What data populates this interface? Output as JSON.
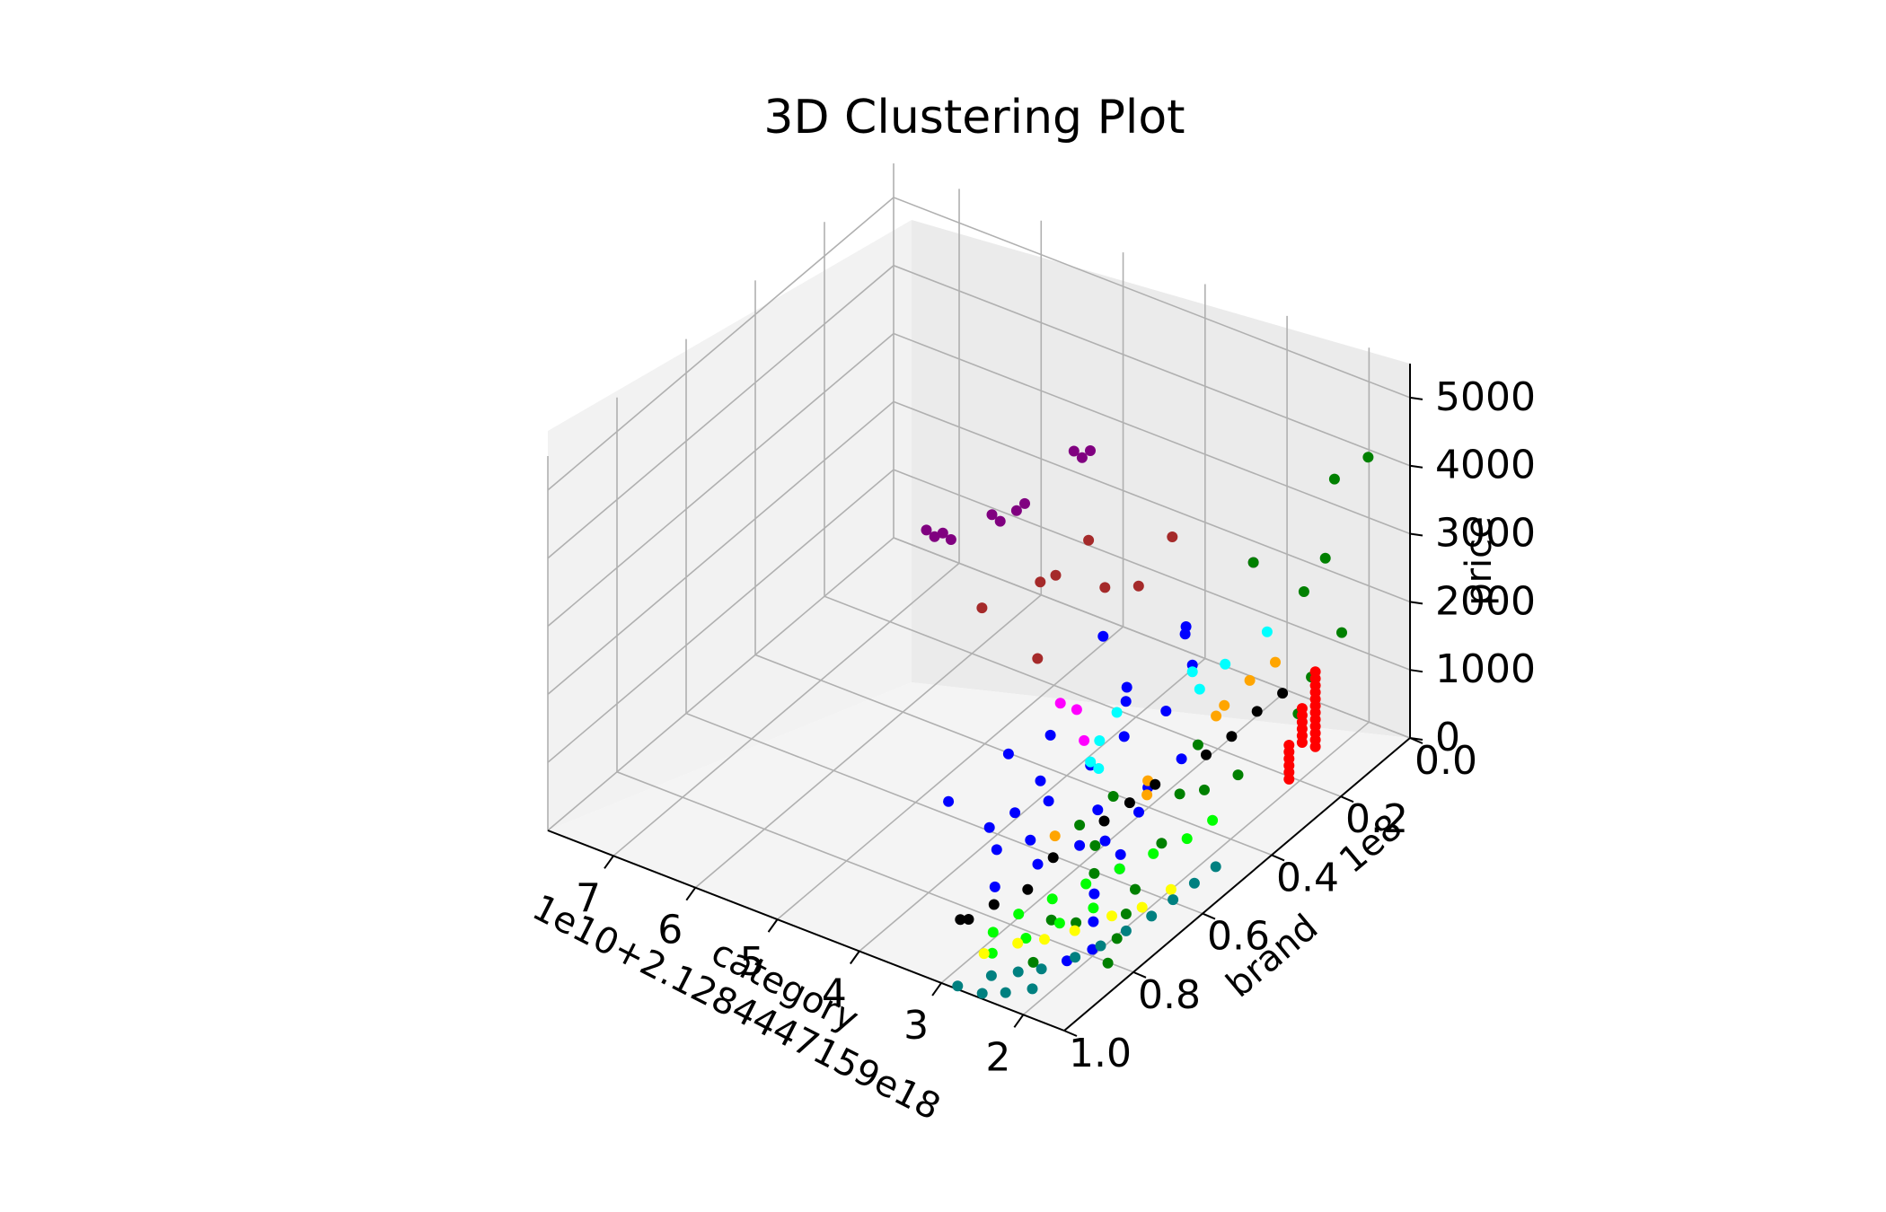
{
  "chart_data": {
    "type": "scatter3d",
    "title": "3D Clustering Plot",
    "xlabel": "category",
    "ylabel": "brand",
    "zlabel": "price",
    "x_offset_label": "1e10+2.1284447159e18",
    "y_scale_label": "1e8",
    "x_ticks": [
      "7",
      "6",
      "5",
      "4",
      "3",
      "2"
    ],
    "y_ticks": [
      "0.0",
      "0.2",
      "0.4",
      "0.6",
      "0.8",
      "1.0"
    ],
    "z_ticks": [
      "0",
      "1000",
      "2000",
      "3000",
      "4000",
      "5000"
    ],
    "xlim": [
      7.8,
      1.5
    ],
    "ylim": [
      0.0,
      1.0
    ],
    "zlim": [
      0,
      5500
    ],
    "grid": true,
    "series": [
      {
        "name": "purple",
        "color": "#800080",
        "points": [
          [
            7.4,
            0.0,
            300
          ],
          [
            7.3,
            0.0,
            250
          ],
          [
            7.2,
            0.0,
            350
          ],
          [
            7.1,
            0.0,
            300
          ],
          [
            6.6,
            0.0,
            900
          ],
          [
            6.5,
            0.0,
            850
          ],
          [
            6.3,
            0.0,
            1100
          ],
          [
            6.2,
            0.0,
            1250
          ],
          [
            5.6,
            0.0,
            2300
          ],
          [
            5.5,
            0.0,
            2250
          ],
          [
            5.4,
            0.0,
            2400
          ]
        ]
      },
      {
        "name": "brown",
        "color": "#a52a2a",
        "points": [
          [
            6.3,
            0.1,
            100
          ],
          [
            5.4,
            0.1,
            1000
          ],
          [
            5.0,
            0.1,
            1700
          ],
          [
            4.8,
            0.1,
            1100
          ],
          [
            4.6,
            0.05,
            1000
          ],
          [
            5.2,
            0.2,
            300
          ],
          [
            4.4,
            0.0,
            1600
          ],
          [
            5.8,
            0.05,
            500
          ]
        ]
      },
      {
        "name": "magenta",
        "color": "#ff00ff",
        "points": [
          [
            4.5,
            0.3,
            400
          ],
          [
            4.3,
            0.3,
            400
          ],
          [
            4.0,
            0.35,
            300
          ],
          [
            3.2,
            0.05,
            2000
          ]
        ]
      },
      {
        "name": "blue",
        "color": "#0000ff",
        "points": [
          [
            4.0,
            0.55,
            100
          ],
          [
            3.8,
            0.5,
            150
          ],
          [
            3.6,
            0.6,
            100
          ],
          [
            4.5,
            0.45,
            300
          ],
          [
            4.2,
            0.4,
            500
          ],
          [
            3.9,
            0.5,
            400
          ],
          [
            3.5,
            0.45,
            600
          ],
          [
            3.3,
            0.4,
            900
          ],
          [
            3.0,
            0.35,
            1200
          ],
          [
            3.4,
            0.2,
            1500
          ],
          [
            3.1,
            0.25,
            1400
          ],
          [
            3.7,
            0.3,
            800
          ],
          [
            4.4,
            0.2,
            1000
          ],
          [
            3.2,
            0.5,
            300
          ],
          [
            2.9,
            0.55,
            200
          ],
          [
            2.7,
            0.5,
            500
          ],
          [
            4.1,
            0.6,
            50
          ],
          [
            3.8,
            0.65,
            80
          ],
          [
            3.3,
            0.65,
            100
          ],
          [
            3.0,
            0.6,
            300
          ],
          [
            2.8,
            0.45,
            600
          ],
          [
            2.6,
            0.4,
            900
          ],
          [
            2.5,
            0.6,
            400
          ],
          [
            3.6,
            0.15,
            1300
          ],
          [
            2.4,
            0.7,
            300
          ],
          [
            2.2,
            0.75,
            200
          ],
          [
            2.0,
            0.8,
            100
          ],
          [
            2.3,
            0.65,
            500
          ],
          [
            4.6,
            0.6,
            200
          ],
          [
            3.4,
            0.75,
            150
          ],
          [
            2.1,
            0.85,
            100
          ],
          [
            3.9,
            0.25,
            700
          ]
        ]
      },
      {
        "name": "cyan",
        "color": "#00ffff",
        "points": [
          [
            3.6,
            0.4,
            700
          ],
          [
            3.5,
            0.45,
            650
          ],
          [
            3.4,
            0.45,
            600
          ],
          [
            3.6,
            0.35,
            900
          ],
          [
            3.1,
            0.25,
            1300
          ],
          [
            2.8,
            0.3,
            1400
          ],
          [
            2.7,
            0.25,
            1600
          ],
          [
            2.4,
            0.2,
            2000
          ]
        ]
      },
      {
        "name": "orange",
        "color": "#ffa500",
        "points": [
          [
            3.3,
            0.6,
            300
          ],
          [
            2.8,
            0.45,
            700
          ],
          [
            2.6,
            0.3,
            1100
          ],
          [
            2.5,
            0.3,
            1300
          ],
          [
            2.4,
            0.25,
            1500
          ],
          [
            2.3,
            0.2,
            1600
          ],
          [
            2.6,
            0.5,
            800
          ]
        ]
      },
      {
        "name": "black",
        "color": "#000000",
        "points": [
          [
            3.4,
            0.85,
            100
          ],
          [
            3.3,
            0.85,
            150
          ],
          [
            3.2,
            0.8,
            200
          ],
          [
            3.0,
            0.75,
            300
          ],
          [
            2.9,
            0.7,
            600
          ],
          [
            2.7,
            0.6,
            800
          ],
          [
            2.6,
            0.55,
            900
          ],
          [
            2.5,
            0.5,
            1000
          ],
          [
            2.3,
            0.4,
            1100
          ],
          [
            2.2,
            0.35,
            1200
          ],
          [
            2.1,
            0.3,
            1400
          ],
          [
            2.0,
            0.25,
            1500
          ]
        ]
      },
      {
        "name": "green",
        "color": "#008000",
        "points": [
          [
            1.8,
            0.05,
            4200
          ],
          [
            2.0,
            0.1,
            4000
          ],
          [
            1.9,
            0.15,
            3100
          ],
          [
            1.95,
            0.2,
            2800
          ],
          [
            3.2,
            0.05,
            2000
          ],
          [
            2.4,
            0.4,
            1200
          ],
          [
            2.2,
            0.5,
            1000
          ],
          [
            2.0,
            0.6,
            800
          ],
          [
            1.9,
            0.7,
            600
          ],
          [
            1.8,
            0.75,
            500
          ],
          [
            1.7,
            0.8,
            400
          ],
          [
            1.6,
            0.85,
            300
          ],
          [
            2.6,
            0.65,
            700
          ],
          [
            2.4,
            0.7,
            600
          ],
          [
            2.2,
            0.8,
            400
          ],
          [
            1.9,
            0.5,
            1200
          ],
          [
            1.7,
            0.45,
            1300
          ],
          [
            1.6,
            0.3,
            1600
          ],
          [
            1.65,
            0.25,
            1900
          ],
          [
            1.7,
            0.15,
            2100
          ],
          [
            2.8,
            0.55,
            900
          ],
          [
            3.0,
            0.6,
            600
          ],
          [
            2.5,
            0.8,
            300
          ],
          [
            2.3,
            0.9,
            200
          ]
        ]
      },
      {
        "name": "lime",
        "color": "#00ff00",
        "points": [
          [
            3.0,
            0.85,
            100
          ],
          [
            2.9,
            0.8,
            200
          ],
          [
            2.7,
            0.75,
            300
          ],
          [
            2.5,
            0.7,
            400
          ],
          [
            2.3,
            0.65,
            500
          ],
          [
            2.1,
            0.6,
            600
          ],
          [
            1.9,
            0.55,
            700
          ],
          [
            1.8,
            0.5,
            800
          ],
          [
            2.8,
            0.9,
            100
          ],
          [
            2.6,
            0.85,
            200
          ],
          [
            2.4,
            0.8,
            300
          ],
          [
            2.2,
            0.75,
            400
          ]
        ]
      },
      {
        "name": "yellow",
        "color": "#ffff00",
        "points": [
          [
            2.9,
            0.9,
            50
          ],
          [
            2.7,
            0.85,
            80
          ],
          [
            2.5,
            0.82,
            100
          ],
          [
            2.3,
            0.78,
            150
          ],
          [
            2.1,
            0.72,
            200
          ],
          [
            1.9,
            0.68,
            250
          ],
          [
            1.8,
            0.62,
            300
          ]
        ]
      },
      {
        "name": "teal",
        "color": "#008080",
        "points": [
          [
            2.8,
            1.0,
            50
          ],
          [
            2.6,
            0.95,
            80
          ],
          [
            2.4,
            0.92,
            100
          ],
          [
            2.2,
            0.9,
            150
          ],
          [
            2.0,
            0.85,
            200
          ],
          [
            1.9,
            0.8,
            200
          ],
          [
            1.8,
            0.75,
            250
          ],
          [
            1.7,
            0.7,
            300
          ],
          [
            1.65,
            0.65,
            350
          ],
          [
            1.6,
            0.6,
            400
          ],
          [
            1.55,
            0.55,
            450
          ],
          [
            2.5,
            1.0,
            80
          ],
          [
            2.3,
            0.98,
            100
          ],
          [
            2.1,
            0.95,
            120
          ]
        ]
      },
      {
        "name": "red",
        "color": "#ff0000",
        "points": [
          [
            1.6,
            0.25,
            900
          ],
          [
            1.6,
            0.25,
            1000
          ],
          [
            1.6,
            0.25,
            1100
          ],
          [
            1.6,
            0.25,
            1200
          ],
          [
            1.6,
            0.25,
            1300
          ],
          [
            1.6,
            0.25,
            1400
          ],
          [
            1.6,
            0.25,
            1500
          ],
          [
            1.6,
            0.25,
            1600
          ],
          [
            1.6,
            0.25,
            1700
          ],
          [
            1.6,
            0.25,
            1800
          ],
          [
            1.6,
            0.25,
            1900
          ],
          [
            1.6,
            0.25,
            2000
          ],
          [
            1.55,
            0.3,
            1200
          ],
          [
            1.55,
            0.3,
            1300
          ],
          [
            1.55,
            0.3,
            1400
          ],
          [
            1.55,
            0.3,
            1500
          ],
          [
            1.55,
            0.3,
            1600
          ],
          [
            1.55,
            0.3,
            1700
          ],
          [
            1.5,
            0.35,
            900
          ],
          [
            1.5,
            0.35,
            1000
          ],
          [
            1.5,
            0.35,
            1100
          ],
          [
            1.5,
            0.35,
            1200
          ],
          [
            1.5,
            0.35,
            1300
          ],
          [
            1.5,
            0.35,
            1400
          ]
        ]
      }
    ]
  }
}
